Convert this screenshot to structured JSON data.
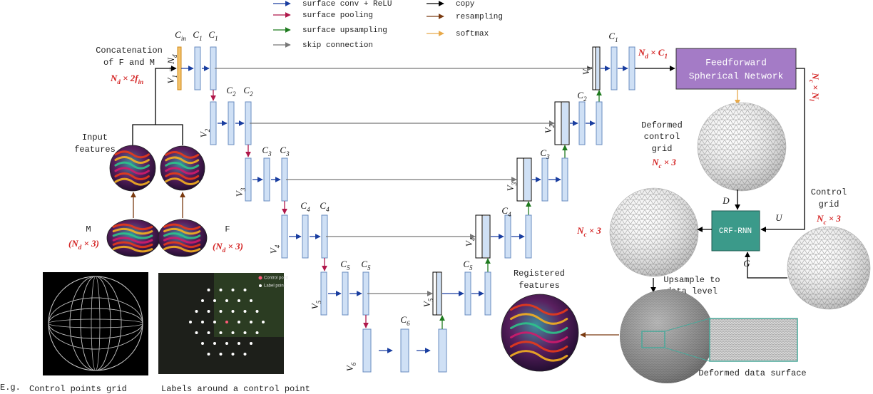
{
  "legend": [
    {
      "label": "surface conv + ReLU",
      "color": "#1a3ea0"
    },
    {
      "label": "surface pooling",
      "color": "#b0174a"
    },
    {
      "label": "surface upsampling",
      "color": "#1e7a1e"
    },
    {
      "label": "skip connection",
      "color": "#777777"
    },
    {
      "label": "copy",
      "color": "#000000"
    },
    {
      "label": "resampling",
      "color": "#7a3a10"
    },
    {
      "label": "softmax",
      "color": "#e8a94a"
    }
  ],
  "inputs": {
    "concat_label": [
      "Concatenation",
      "of F and M"
    ],
    "concat_dim": [
      {
        "t": "N",
        "sub": "d"
      },
      {
        "t": " × 2f",
        "sub": "in"
      }
    ],
    "features_label": [
      "Input",
      "features"
    ],
    "moving": "M",
    "moving_dim": [
      {
        "t": "(N",
        "sub": "d"
      },
      {
        "t": " × 3)"
      }
    ],
    "fixed": "F",
    "fixed_dim": [
      {
        "t": "(N",
        "sub": "d"
      },
      {
        "t": " × 3)"
      }
    ]
  },
  "encoder_channels": [
    [
      {
        "t": "C",
        "sub": "in"
      }
    ],
    [
      {
        "t": "C",
        "sub": "1"
      }
    ],
    [
      {
        "t": "C",
        "sub": "1"
      }
    ],
    [
      {
        "t": "C",
        "sub": "2"
      }
    ],
    [
      {
        "t": "C",
        "sub": "2"
      }
    ],
    [
      {
        "t": "C",
        "sub": "3"
      }
    ],
    [
      {
        "t": "C",
        "sub": "3"
      }
    ],
    [
      {
        "t": "C",
        "sub": "4"
      }
    ],
    [
      {
        "t": "C",
        "sub": "4"
      }
    ],
    [
      {
        "t": "C",
        "sub": "5"
      }
    ],
    [
      {
        "t": "C",
        "sub": "5"
      }
    ],
    [
      {
        "t": "C",
        "sub": "6"
      }
    ]
  ],
  "decoder_channels": [
    [
      {
        "t": "C",
        "sub": "5"
      }
    ],
    [
      {
        "t": "C",
        "sub": "4"
      }
    ],
    [
      {
        "t": "C",
        "sub": "3"
      }
    ],
    [
      {
        "t": "C",
        "sub": "2"
      }
    ],
    [
      {
        "t": "C",
        "sub": "1"
      }
    ]
  ],
  "encoder_levels": [
    [
      {
        "t": "V",
        "sub": "1"
      },
      {
        "t": " = N",
        "sub": "d"
      }
    ],
    [
      {
        "t": "V",
        "sub": "2"
      }
    ],
    [
      {
        "t": "V",
        "sub": "3"
      }
    ],
    [
      {
        "t": "V",
        "sub": "4"
      }
    ],
    [
      {
        "t": "V",
        "sub": "5"
      }
    ],
    [
      {
        "t": "V",
        "sub": "6"
      }
    ]
  ],
  "decoder_levels": [
    [
      {
        "t": "V",
        "sub": "1"
      }
    ],
    [
      {
        "t": "V",
        "sub": "2"
      }
    ],
    [
      {
        "t": "V",
        "sub": "3"
      }
    ],
    [
      {
        "t": "V",
        "sub": "4"
      }
    ],
    [
      {
        "t": "V",
        "sub": "5"
      }
    ]
  ],
  "registration": {
    "output_dim": [
      {
        "t": "N",
        "sub": "d"
      },
      {
        "t": " × C",
        "sub": "1"
      }
    ],
    "network": [
      "Feedforward",
      "Spherical Network"
    ],
    "softmax_dim": [
      {
        "t": "N",
        "sub": "c"
      },
      {
        "t": " × N",
        "sub": "l"
      }
    ],
    "deformed_grid": [
      "Deformed",
      "control",
      "grid"
    ],
    "deformed_grid_dim": [
      {
        "t": "N",
        "sub": "c"
      },
      {
        "t": " × 3"
      }
    ],
    "crf": "CRF-RNN",
    "d": "D",
    "u": "U",
    "g": "G",
    "control_grid": [
      "Control",
      "grid"
    ],
    "control_grid_dim": [
      {
        "t": "N",
        "sub": "c"
      },
      {
        "t": " × 3"
      }
    ],
    "crf_output_dim": [
      {
        "t": "N",
        "sub": "c"
      },
      {
        "t": " × 3"
      }
    ],
    "upsample": [
      "Upsample to",
      "data level"
    ],
    "registered": [
      "Registered",
      "features"
    ],
    "data_surface": "Deformed data surface"
  },
  "examples": {
    "prefix": "E.g.",
    "grid_caption": "Control points grid",
    "labels_caption": "Labels around a control point",
    "inset_legend": [
      "Control point",
      "Label point"
    ]
  }
}
